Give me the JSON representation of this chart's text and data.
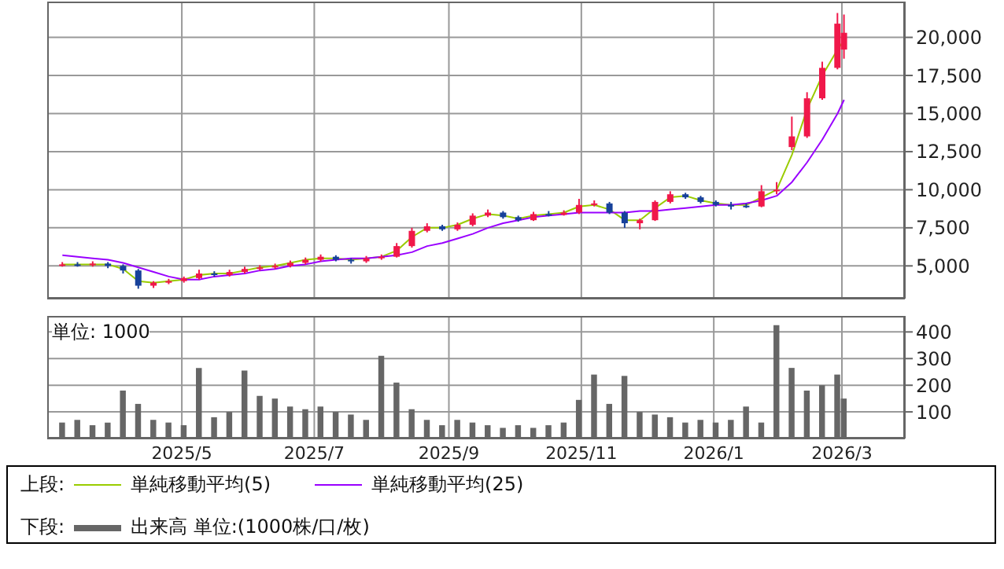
{
  "chart_data": [
    {
      "type": "candlestick",
      "x": [
        "2025-03-07",
        "2025-03-14",
        "2025-03-21",
        "2025-03-28",
        "2025-04-04",
        "2025-04-11",
        "2025-04-18",
        "2025-04-25",
        "2025-05-02",
        "2025-05-09",
        "2025-05-16",
        "2025-05-23",
        "2025-05-30",
        "2025-06-06",
        "2025-06-13",
        "2025-06-20",
        "2025-06-27",
        "2025-07-04",
        "2025-07-11",
        "2025-07-18",
        "2025-07-25",
        "2025-08-01",
        "2025-08-08",
        "2025-08-15",
        "2025-08-22",
        "2025-08-29",
        "2025-09-05",
        "2025-09-12",
        "2025-09-19",
        "2025-09-26",
        "2025-10-03",
        "2025-10-10",
        "2025-10-17",
        "2025-10-24",
        "2025-10-31",
        "2025-11-07",
        "2025-11-14",
        "2025-11-21",
        "2025-11-28",
        "2025-12-05",
        "2025-12-12",
        "2025-12-19",
        "2025-12-26",
        "2026-01-02",
        "2026-01-09",
        "2026-01-16",
        "2026-01-23",
        "2026-01-30",
        "2026-02-06",
        "2026-02-13",
        "2026-02-20",
        "2026-02-27",
        "2026-03-02"
      ],
      "ohlc": [
        [
          5050,
          5250,
          4950,
          5100
        ],
        [
          5100,
          5250,
          4950,
          5050
        ],
        [
          5050,
          5300,
          4950,
          5150
        ],
        [
          5150,
          5250,
          4850,
          5000
        ],
        [
          5000,
          5100,
          4500,
          4700
        ],
        [
          4700,
          4800,
          3500,
          3700
        ],
        [
          3700,
          4000,
          3550,
          3900
        ],
        [
          3900,
          4150,
          3800,
          4000
        ],
        [
          4000,
          4300,
          3900,
          4200
        ],
        [
          4200,
          4750,
          4100,
          4500
        ],
        [
          4500,
          4650,
          4300,
          4400
        ],
        [
          4400,
          4750,
          4300,
          4600
        ],
        [
          4600,
          4950,
          4500,
          4800
        ],
        [
          4800,
          5050,
          4700,
          4900
        ],
        [
          4900,
          5150,
          4800,
          5000
        ],
        [
          5000,
          5350,
          4900,
          5200
        ],
        [
          5200,
          5550,
          5100,
          5400
        ],
        [
          5400,
          5750,
          5300,
          5600
        ],
        [
          5600,
          5700,
          5300,
          5400
        ],
        [
          5400,
          5500,
          5150,
          5300
        ],
        [
          5300,
          5650,
          5200,
          5500
        ],
        [
          5500,
          5750,
          5400,
          5600
        ],
        [
          5600,
          6500,
          5550,
          6300
        ],
        [
          6300,
          7500,
          6200,
          7300
        ],
        [
          7300,
          7800,
          7200,
          7600
        ],
        [
          7600,
          7700,
          7300,
          7400
        ],
        [
          7400,
          7850,
          7300,
          7700
        ],
        [
          7700,
          8450,
          7600,
          8300
        ],
        [
          8300,
          8700,
          8200,
          8500
        ],
        [
          8500,
          8600,
          8100,
          8200
        ],
        [
          8200,
          8300,
          7900,
          8000
        ],
        [
          8000,
          8550,
          7950,
          8400
        ],
        [
          8400,
          8600,
          8250,
          8350
        ],
        [
          8350,
          8650,
          8300,
          8500
        ],
        [
          8500,
          9400,
          8400,
          9000
        ],
        [
          9000,
          9300,
          8900,
          9100
        ],
        [
          9100,
          9200,
          8400,
          8500
        ],
        [
          8500,
          8600,
          7500,
          7800
        ],
        [
          7800,
          8100,
          7400,
          8000
        ],
        [
          8000,
          9300,
          7950,
          9200
        ],
        [
          9200,
          9900,
          9100,
          9700
        ],
        [
          9700,
          9800,
          9400,
          9500
        ],
        [
          9500,
          9600,
          9100,
          9200
        ],
        [
          9200,
          9300,
          8900,
          9000
        ],
        [
          9000,
          9200,
          8700,
          8950
        ],
        [
          8950,
          9100,
          8800,
          8900
        ],
        [
          8900,
          10300,
          8850,
          9900
        ],
        [
          9900,
          10500,
          9700,
          10000
        ],
        [
          12800,
          14800,
          12600,
          13500
        ],
        [
          13500,
          16400,
          13400,
          16000
        ],
        [
          16000,
          18400,
          15900,
          18000
        ],
        [
          18000,
          21600,
          17900,
          20900
        ],
        [
          19200,
          21500,
          18600,
          20300
        ]
      ],
      "colors": [
        "#f0184a",
        "#17419a",
        "#f0184a",
        "#17419a",
        "#17419a",
        "#17419a",
        "#f0184a",
        "#f0184a",
        "#f0184a",
        "#f0184a",
        "#17419a",
        "#f0184a",
        "#f0184a",
        "#f0184a",
        "#f0184a",
        "#f0184a",
        "#f0184a",
        "#f0184a",
        "#17419a",
        "#17419a",
        "#f0184a",
        "#f0184a",
        "#f0184a",
        "#f0184a",
        "#f0184a",
        "#17419a",
        "#f0184a",
        "#f0184a",
        "#f0184a",
        "#17419a",
        "#17419a",
        "#f0184a",
        "#17419a",
        "#f0184a",
        "#f0184a",
        "#f0184a",
        "#17419a",
        "#17419a",
        "#f0184a",
        "#f0184a",
        "#f0184a",
        "#17419a",
        "#17419a",
        "#17419a",
        "#17419a",
        "#17419a",
        "#f0184a",
        "#f0184a",
        "#f0184a",
        "#f0184a",
        "#f0184a",
        "#f0184a",
        "#f0184a"
      ],
      "series": [
        {
          "name": "単純移動平均(5)",
          "type": "line",
          "color": "#99cc00",
          "values": [
            5100,
            5100,
            5100,
            5100,
            4800,
            4000,
            3900,
            4000,
            4100,
            4400,
            4500,
            4500,
            4700,
            4900,
            5000,
            5200,
            5400,
            5500,
            5500,
            5400,
            5500,
            5600,
            6000,
            6900,
            7500,
            7500,
            7700,
            8100,
            8400,
            8300,
            8100,
            8300,
            8400,
            8500,
            8900,
            9000,
            8700,
            8000,
            8000,
            8800,
            9500,
            9600,
            9300,
            9100,
            9000,
            9000,
            9500,
            10000,
            12300,
            15300,
            17500,
            19200,
            19800
          ]
        },
        {
          "name": "単純移動平均(25)",
          "type": "line",
          "color": "#9900ff",
          "values": [
            5700,
            5600,
            5500,
            5400,
            5200,
            4900,
            4600,
            4300,
            4100,
            4100,
            4300,
            4400,
            4500,
            4700,
            4800,
            5000,
            5100,
            5300,
            5400,
            5500,
            5500,
            5600,
            5700,
            5900,
            6300,
            6500,
            6800,
            7100,
            7500,
            7800,
            8000,
            8200,
            8300,
            8400,
            8500,
            8500,
            8500,
            8500,
            8600,
            8600,
            8700,
            8800,
            8900,
            9000,
            9000,
            9100,
            9300,
            9600,
            10500,
            11800,
            13300,
            15000,
            15900
          ]
        }
      ],
      "marker": "none",
      "line_style": "solid",
      "ylim": [
        2850,
        22350
      ],
      "yticks": [
        {
          "value": 5000,
          "label": "5,000"
        },
        {
          "value": 7500,
          "label": "7,500"
        },
        {
          "value": 10000,
          "label": "10,000"
        },
        {
          "value": 12500,
          "label": "12,500"
        },
        {
          "value": 15000,
          "label": "15,000"
        },
        {
          "value": 17500,
          "label": "17,500"
        },
        {
          "value": 20000,
          "label": "20,000"
        }
      ],
      "xlim": [
        "2025-02-28",
        "2026-03-30"
      ],
      "xticks": [
        {
          "value": "2025-05-01",
          "label": null
        },
        {
          "value": "2025-07-01",
          "label": null
        },
        {
          "value": "2025-09-01",
          "label": null
        },
        {
          "value": "2025-11-01",
          "label": null
        },
        {
          "value": "2026-01-01",
          "label": null
        },
        {
          "value": "2026-03-01",
          "label": null
        }
      ],
      "tick_labels": "y",
      "grid": true,
      "legend": "bottom",
      "legend_title": "上段:"
    },
    {
      "type": "bar",
      "x": [
        "2025-03-07",
        "2025-03-14",
        "2025-03-21",
        "2025-03-28",
        "2025-04-04",
        "2025-04-11",
        "2025-04-18",
        "2025-04-25",
        "2025-05-02",
        "2025-05-09",
        "2025-05-16",
        "2025-05-23",
        "2025-05-30",
        "2025-06-06",
        "2025-06-13",
        "2025-06-20",
        "2025-06-27",
        "2025-07-04",
        "2025-07-11",
        "2025-07-18",
        "2025-07-25",
        "2025-08-01",
        "2025-08-08",
        "2025-08-15",
        "2025-08-22",
        "2025-08-29",
        "2025-09-05",
        "2025-09-12",
        "2025-09-19",
        "2025-09-26",
        "2025-10-03",
        "2025-10-10",
        "2025-10-17",
        "2025-10-24",
        "2025-10-31",
        "2025-11-07",
        "2025-11-14",
        "2025-11-21",
        "2025-11-28",
        "2025-12-05",
        "2025-12-12",
        "2025-12-19",
        "2025-12-26",
        "2026-01-02",
        "2026-01-09",
        "2026-01-16",
        "2026-01-23",
        "2026-01-30",
        "2026-02-06",
        "2026-02-13",
        "2026-02-20",
        "2026-02-27",
        "2026-03-02"
      ],
      "series": [
        {
          "name": "出来高 単位:(1000株/口/枚)",
          "color": "#666666",
          "values": [
            60,
            70,
            50,
            60,
            180,
            130,
            70,
            60,
            50,
            265,
            80,
            100,
            255,
            160,
            150,
            120,
            110,
            120,
            100,
            90,
            70,
            310,
            210,
            110,
            70,
            50,
            70,
            60,
            50,
            40,
            50,
            40,
            50,
            60,
            145,
            240,
            130,
            235,
            100,
            90,
            80,
            60,
            70,
            60,
            70,
            120,
            60,
            425,
            265,
            180,
            200,
            240,
            150
          ]
        }
      ],
      "ylim": [
        0,
        460
      ],
      "yticks": [
        100,
        200,
        300,
        400
      ],
      "xlim": [
        "2025-02-28",
        "2026-03-30"
      ],
      "xticks": [
        {
          "value": "2025-05-01",
          "label": "2025/5"
        },
        {
          "value": "2025-07-01",
          "label": "2025/7"
        },
        {
          "value": "2025-09-01",
          "label": "2025/9"
        },
        {
          "value": "2025-11-01",
          "label": "2025/11"
        },
        {
          "value": "2026-01-01",
          "label": "2026/1"
        },
        {
          "value": "2026-03-01",
          "label": "2026/3"
        }
      ],
      "grid": true,
      "legend": "bottom",
      "legend_title": "下段:",
      "annotations": [
        "単位: 1000"
      ]
    }
  ]
}
